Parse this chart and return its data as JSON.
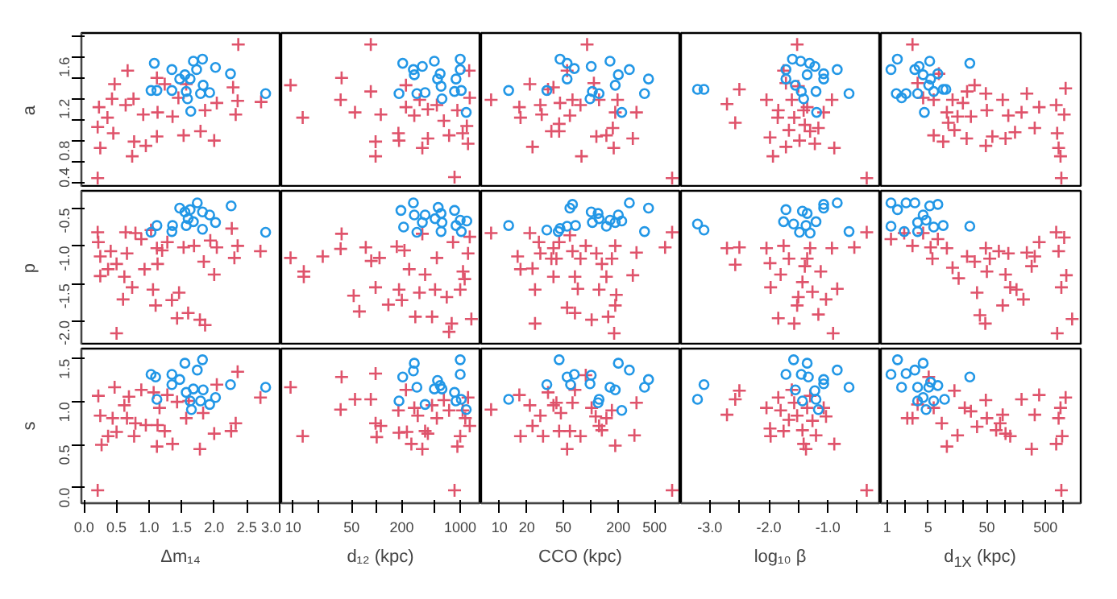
{
  "chart_data": [
    {
      "type": "scatter",
      "ylabel": "a",
      "tick_labels": "y",
      "xlim": [
        -0.04,
        3.03
      ],
      "ylim": [
        0.35,
        1.83
      ],
      "yticks": [
        0.4,
        {
          "value": 0.6,
          "label": null
        },
        0.8,
        {
          "value": 1.0,
          "label": null
        },
        1.2,
        {
          "value": 1.4,
          "label": null
        },
        1.6,
        {
          "value": 1.8,
          "label": null
        }
      ],
      "series": [
        {
          "color": "#df536b",
          "marker": "cross",
          "x": [
            0.21,
            0.25,
            0.21,
            0.23,
            0.36,
            0.43,
            0.47,
            0.45,
            0.67,
            0.64,
            0.74,
            0.77,
            0.76,
            0.91,
            0.95,
            1.12,
            1.12,
            1.13,
            1.24,
            1.36,
            1.45,
            1.53,
            1.57,
            1.79,
            1.86,
            2.0,
            2.04,
            2.29,
            2.33,
            2.37,
            2.36,
            2.72
          ],
          "values": [
            0.44,
            0.73,
            0.93,
            1.12,
            1.02,
            1.2,
            1.34,
            0.87,
            1.47,
            1.14,
            0.65,
            0.79,
            1.2,
            1.05,
            0.75,
            1.4,
            0.84,
            1.07,
            1.34,
            1.03,
            1.21,
            0.85,
            1.34,
            0.89,
            1.09,
            0.8,
            1.16,
            1.31,
            1.05,
            1.72,
            1.18,
            1.17
          ]
        },
        {
          "color": "#2297e6",
          "marker": "circle",
          "x": [
            1.08,
            1.03,
            1.12,
            1.35,
            1.35,
            1.47,
            1.55,
            1.63,
            1.57,
            1.59,
            1.68,
            1.73,
            1.82,
            1.83,
            1.79,
            1.93,
            1.64,
            2.02,
            2.25,
            2.79
          ],
          "values": [
            1.54,
            1.28,
            1.28,
            1.48,
            1.28,
            1.39,
            1.43,
            1.39,
            1.27,
            1.2,
            1.56,
            1.48,
            1.58,
            1.33,
            1.25,
            1.26,
            1.08,
            1.5,
            1.44,
            1.25
          ]
        }
      ]
    },
    {
      "type": "scatter",
      "tick_labels": false,
      "log": "x",
      "xlim": [
        7.2,
        1780
      ],
      "ylim": [
        0.35,
        1.83
      ],
      "series": [
        {
          "color": "#df536b",
          "marker": "cross",
          "x": [
            9.3,
            13,
            38,
            37,
            55,
            85,
            85,
            97,
            97,
            112,
            182,
            185,
            224,
            224,
            282,
            327,
            352,
            410,
            410,
            525,
            637,
            736,
            855,
            925,
            1070,
            1240,
            1280,
            1300,
            1200
          ],
          "values": [
            1.33,
            1.02,
            1.4,
            1.19,
            1.07,
            1.72,
            1.27,
            0.79,
            0.65,
            1.05,
            0.87,
            0.8,
            1.12,
            1.33,
            1.04,
            1.19,
            0.73,
            0.82,
            1.1,
            1.14,
            0.99,
            0.85,
            0.45,
            1.09,
            0.87,
            0.77,
            1.47,
            1.21,
            0.94
          ]
        },
        {
          "color": "#2297e6",
          "marker": "circle",
          "x": [
            185,
            205,
            275,
            282,
            303,
            352,
            380,
            490,
            535,
            575,
            590,
            605,
            890,
            855,
            1000,
            1000,
            1030,
            1180
          ],
          "values": [
            1.25,
            1.54,
            1.48,
            1.43,
            1.25,
            1.51,
            1.26,
            1.56,
            1.39,
            1.44,
            1.32,
            1.2,
            1.39,
            1.27,
            1.58,
            1.48,
            1.28,
            1.07
          ]
        }
      ]
    },
    {
      "type": "scatter",
      "tick_labels": false,
      "log": "x",
      "xlim": [
        6.3,
        970
      ],
      "ylim": [
        0.35,
        1.83
      ],
      "series": [
        {
          "color": "#df536b",
          "marker": "cross",
          "x": [
            8.1,
            16.5,
            17,
            21.5,
            23,
            28,
            29,
            34,
            37,
            45,
            46,
            39,
            55,
            63,
            77,
            91,
            108,
            123,
            59,
            45,
            79,
            115,
            148,
            174,
            178,
            196,
            185,
            288,
            316,
            776
          ],
          "values": [
            1.19,
            1.12,
            1.02,
            1.34,
            0.74,
            1.14,
            1.05,
            1.29,
            0.89,
            0.96,
            1.16,
            1.31,
            1.47,
            1.19,
            1.14,
            1.72,
            1.35,
            1.19,
            1.04,
            0.89,
            0.65,
            0.84,
            0.85,
            0.92,
            0.73,
            1.19,
            1.07,
            0.82,
            1.07,
            0.44
          ]
        },
        {
          "color": "#2297e6",
          "marker": "circle",
          "x": [
            12.6,
            33,
            46,
            55,
            66,
            55,
            101,
            104,
            123,
            162,
            185,
            200,
            264,
            218,
            387,
            428,
            98
          ],
          "values": [
            1.28,
            1.28,
            1.58,
            1.54,
            1.49,
            1.39,
            1.51,
            1.27,
            1.25,
            1.56,
            1.33,
            1.43,
            1.48,
            1.07,
            1.25,
            1.39,
            1.2
          ]
        }
      ]
    },
    {
      "type": "scatter",
      "tick_labels": false,
      "xlim": [
        -3.49,
        -0.1
      ],
      "ylim": [
        0.35,
        1.83
      ],
      "series": [
        {
          "color": "#df536b",
          "marker": "cross",
          "x": [
            -2.5,
            -2.71,
            -2.57,
            -2.04,
            -1.84,
            -1.85,
            -1.75,
            -1.71,
            -1.61,
            -1.57,
            -1.52,
            -1.5,
            -1.98,
            -1.93,
            -1.71,
            -1.48,
            -1.41,
            -1.39,
            -1.35,
            -1.3,
            -1.22,
            -1.16,
            -1.07,
            -0.93,
            -0.89,
            -1.66,
            -0.34
          ],
          "values": [
            1.29,
            1.15,
            0.97,
            1.19,
            1.09,
            1.02,
            1.47,
            1.35,
            1.19,
            1.02,
            1.72,
            1.32,
            0.83,
            0.65,
            0.74,
            0.8,
            1.09,
            0.95,
            1.12,
            0.89,
            0.77,
            0.92,
            1.07,
            1.19,
            0.73,
            0.9,
            0.44
          ]
        },
        {
          "color": "#2297e6",
          "marker": "circle",
          "x": [
            -3.21,
            -3.1,
            -1.6,
            -1.46,
            -1.31,
            -1.22,
            -1.71,
            -1.07,
            -1.07,
            -1.35,
            -0.84,
            -1.71,
            -1.55,
            -1.45,
            -1.41,
            -1.2,
            -1.19,
            -0.64
          ],
          "values": [
            1.29,
            1.29,
            1.58,
            1.56,
            1.54,
            1.51,
            1.48,
            1.44,
            1.39,
            1.43,
            1.48,
            1.39,
            1.33,
            1.27,
            1.2,
            1.27,
            1.07,
            1.25
          ]
        }
      ]
    },
    {
      "type": "scatter",
      "tick_labels": false,
      "log": "x",
      "xlim": [
        0.78,
        1990
      ],
      "ylim": [
        0.35,
        1.83
      ],
      "series": [
        {
          "color": "#df536b",
          "marker": "cross",
          "x": [
            2.7,
            3.3,
            4.1,
            6.2,
            7.6,
            6.2,
            9,
            10.4,
            11,
            13,
            14,
            15.8,
            19.5,
            22.6,
            23,
            26.7,
            30.9,
            48,
            48,
            50,
            62,
            93,
            104,
            116,
            151,
            195,
            240,
            327,
            389,
            760,
            790,
            835,
            900,
            930,
            1040,
            1100
          ],
          "values": [
            1.72,
            1.35,
            1.21,
            1.19,
            1.44,
            0.85,
            0.79,
            1.07,
            0.97,
            1.19,
            0.9,
            1.03,
            1.16,
            0.82,
            1.27,
            1.03,
            1.33,
            1.25,
            0.75,
            1.09,
            0.84,
            1.19,
            0.82,
            1.04,
            0.88,
            1.07,
            1.25,
            0.92,
            1.12,
            1.14,
            0.87,
            0.73,
            0.65,
            0.44,
            1.05,
            1.3
          ]
        },
        {
          "color": "#2297e6",
          "marker": "circle",
          "x": [
            1.49,
            1.16,
            2.96,
            3.5,
            5.3,
            4.1,
            5.5,
            7.3,
            5.1,
            1.43,
            2.1,
            3.3,
            6.2,
            9,
            10,
            4.3,
            25.6,
            1.76
          ],
          "values": [
            1.58,
            1.48,
            1.48,
            1.51,
            1.56,
            1.43,
            1.39,
            1.44,
            1.33,
            1.25,
            1.25,
            1.25,
            1.27,
            1.29,
            1.29,
            1.07,
            1.54,
            1.21
          ]
        }
      ]
    },
    {
      "type": "scatter",
      "ylabel": "p",
      "tick_labels": "y",
      "xlim": [
        -0.04,
        3.03
      ],
      "ylim": [
        -2.32,
        -0.27
      ],
      "yticks": [
        {
          "value": -2,
          "label": "-2.0"
        },
        -1.5,
        {
          "value": -1,
          "label": "-1.0"
        },
        -0.5
      ],
      "series": [
        {
          "color": "#df536b",
          "marker": "cross",
          "x": [
            0.21,
            0.22,
            0.25,
            0.25,
            0.41,
            0.37,
            0.5,
            0.5,
            0.62,
            0.64,
            0.66,
            0.6,
            0.74,
            0.79,
            0.88,
            0.93,
            1.03,
            1.06,
            1.1,
            1.12,
            1.13,
            1.2,
            1.28,
            1.35,
            1.43,
            1.46,
            1.53,
            1.6,
            1.69,
            1.78,
            1.86,
            1.84,
            1.94,
            2.0,
            2.04,
            2.27,
            2.31,
            2.36,
            2.71
          ],
          "values": [
            -0.82,
            -0.95,
            -1.14,
            -1.4,
            -1.07,
            -1.31,
            -1.24,
            -2.16,
            -1.41,
            -0.82,
            -1.1,
            -1.71,
            -1.55,
            -0.83,
            -0.91,
            -1.31,
            -0.79,
            -1.58,
            -1.79,
            -1.03,
            -1.24,
            -1.06,
            -0.95,
            -1.72,
            -1.96,
            -1.62,
            -1.02,
            -1.89,
            -1.0,
            -1.98,
            -2.05,
            -1.21,
            -0.93,
            -1.38,
            -1.02,
            -0.77,
            -1.16,
            -1.0,
            -1.07
          ]
        },
        {
          "color": "#2297e6",
          "marker": "circle",
          "x": [
            1.03,
            1.12,
            1.35,
            1.36,
            1.47,
            1.55,
            1.6,
            1.63,
            1.68,
            1.74,
            1.82,
            1.82,
            1.93,
            2.02,
            2.26,
            1.57,
            2.79
          ],
          "values": [
            -0.82,
            -0.73,
            -0.81,
            -0.73,
            -0.5,
            -0.55,
            -0.64,
            -0.52,
            -0.68,
            -0.43,
            -0.55,
            -0.78,
            -0.59,
            -0.69,
            -0.47,
            -0.73,
            -0.82
          ]
        }
      ]
    },
    {
      "type": "scatter",
      "tick_labels": false,
      "log": "x",
      "xlim": [
        7.2,
        1780
      ],
      "ylim": [
        -2.32,
        -0.27
      ],
      "series": [
        {
          "color": "#df536b",
          "marker": "cross",
          "x": [
            9.3,
            13.4,
            13.4,
            22.6,
            38,
            37,
            53,
            62,
            74,
            86,
            97,
            108,
            138,
            174,
            185,
            200,
            215,
            245,
            290,
            325,
            352,
            380,
            460,
            500,
            525,
            690,
            735,
            790,
            820,
            1000,
            1080,
            1240,
            1300,
            1360,
            1130
          ],
          "values": [
            -1.16,
            -1.34,
            -1.41,
            -1.14,
            -0.84,
            -1.04,
            -1.66,
            -1.87,
            -1.02,
            -1.2,
            -1.55,
            -1.16,
            -1.78,
            -1.01,
            -1.58,
            -1.72,
            -1.06,
            -1.31,
            -1.94,
            -1.62,
            -0.84,
            -1.38,
            -1.94,
            -1.58,
            -1.16,
            -1.68,
            -2.14,
            -2.03,
            -0.95,
            -1.58,
            -1.34,
            -1.1,
            -0.88,
            -1.97,
            -1.44
          ]
        },
        {
          "color": "#2297e6",
          "marker": "circle",
          "x": [
            195,
            210,
            275,
            282,
            303,
            352,
            380,
            500,
            545,
            590,
            605,
            590,
            855,
            890,
            1000,
            1030,
            1200
          ],
          "values": [
            -0.53,
            -0.75,
            -0.43,
            -0.59,
            -0.82,
            -0.69,
            -0.59,
            -0.64,
            -0.49,
            -0.57,
            -0.69,
            -0.81,
            -0.53,
            -0.73,
            -0.66,
            -0.81,
            -0.67
          ]
        }
      ]
    },
    {
      "type": "scatter",
      "tick_labels": false,
      "log": "x",
      "xlim": [
        6.3,
        970
      ],
      "ylim": [
        -2.32,
        -0.27
      ],
      "series": [
        {
          "color": "#df536b",
          "marker": "cross",
          "x": [
            8.1,
            15.8,
            17,
            21.5,
            23,
            24.5,
            24.5,
            27,
            28,
            39,
            37,
            45,
            39,
            42,
            63,
            59,
            67,
            72,
            77,
            88,
            115,
            132,
            148,
            123,
            170,
            185,
            190,
            185,
            288,
            316,
            67,
            55,
            102,
            155,
            650,
            776,
            180
          ],
          "values": [
            -0.83,
            -1.14,
            -1.31,
            -0.83,
            -1.3,
            -1.58,
            -2.03,
            -0.95,
            -1.1,
            -1.41,
            -1.17,
            -0.95,
            -1.03,
            -1.17,
            -1.07,
            -0.86,
            -1.41,
            -1.57,
            -1.17,
            -1.0,
            -1.1,
            -1.24,
            -1.41,
            -1.58,
            -1.17,
            -1.0,
            -1.65,
            -1.79,
            -1.39,
            -1.09,
            -1.89,
            -1.82,
            -1.98,
            -1.94,
            -1.02,
            -0.82,
            -2.16
          ]
        },
        {
          "color": "#2297e6",
          "marker": "circle",
          "x": [
            12.6,
            33,
            46,
            55,
            59,
            63,
            68,
            101,
            104,
            120,
            123,
            148,
            162,
            185,
            200,
            218,
            264,
            387,
            428,
            44
          ],
          "values": [
            -0.73,
            -0.79,
            -0.77,
            -0.74,
            -0.5,
            -0.45,
            -0.73,
            -0.55,
            -0.69,
            -0.57,
            -0.64,
            -0.74,
            -0.66,
            -0.69,
            -0.59,
            -0.67,
            -0.43,
            -0.81,
            -0.5,
            -0.81
          ]
        }
      ]
    },
    {
      "type": "scatter",
      "tick_labels": false,
      "xlim": [
        -3.49,
        -0.1
      ],
      "ylim": [
        -2.32,
        -0.27
      ],
      "series": [
        {
          "color": "#df536b",
          "marker": "cross",
          "x": [
            -2.71,
            -2.5,
            -2.57,
            -2.04,
            -1.98,
            -1.97,
            -1.84,
            -1.8,
            -1.75,
            -1.66,
            -1.57,
            -1.52,
            -1.5,
            -1.43,
            -1.39,
            -1.35,
            -1.3,
            -1.26,
            -1.16,
            -1.12,
            -1.03,
            -0.93,
            -0.84,
            -0.55,
            -0.34,
            -0.91
          ],
          "values": [
            -1.03,
            -1.02,
            -1.25,
            -1.03,
            -1.23,
            -1.55,
            -1.96,
            -1.38,
            -1.0,
            -1.17,
            -2.03,
            -1.79,
            -1.68,
            -1.48,
            -1.27,
            -1.17,
            -1.03,
            -1.61,
            -1.91,
            -1.34,
            -1.71,
            -1.03,
            -1.57,
            -1.02,
            -0.82,
            -2.16
          ]
        },
        {
          "color": "#2297e6",
          "marker": "circle",
          "x": [
            -3.21,
            -3.1,
            -1.71,
            -1.75,
            -1.58,
            -1.43,
            -1.35,
            -1.48,
            -1.37,
            -1.2,
            -1.07,
            -1.07,
            -0.84,
            -0.64,
            -1.3
          ],
          "values": [
            -0.71,
            -0.79,
            -0.52,
            -0.68,
            -0.71,
            -0.54,
            -0.57,
            -0.82,
            -0.73,
            -0.68,
            -0.45,
            -0.5,
            -0.43,
            -0.81,
            -0.83
          ]
        }
      ]
    },
    {
      "type": "scatter",
      "tick_labels": false,
      "log": "x",
      "xlim": [
        0.78,
        1990
      ],
      "ylim": [
        -2.32,
        -0.27
      ],
      "series": [
        {
          "color": "#df536b",
          "marker": "cross",
          "x": [
            1.95,
            1.16,
            2.7,
            4.1,
            5.5,
            5.9,
            7.3,
            10.4,
            13,
            16.5,
            23,
            31,
            34,
            38,
            47,
            48,
            50,
            56,
            80,
            93,
            104,
            116,
            125,
            160,
            210,
            240,
            327,
            290,
            390,
            760,
            835,
            1040,
            1130,
            930,
            790,
            1420
          ],
          "values": [
            -0.83,
            -0.91,
            -1.0,
            -0.83,
            -1.02,
            -1.17,
            -0.91,
            -1.03,
            -1.29,
            -1.43,
            -1.14,
            -1.21,
            -1.62,
            -1.92,
            -2.03,
            -1.03,
            -1.34,
            -1.17,
            -1.07,
            -1.79,
            -1.38,
            -1.1,
            -1.55,
            -1.58,
            -1.71,
            -1.09,
            -1.14,
            -1.27,
            -0.95,
            -0.82,
            -1.07,
            -0.89,
            -1.39,
            -1.55,
            -2.16,
            -1.97
          ]
        },
        {
          "color": "#2297e6",
          "marker": "circle",
          "x": [
            1.16,
            1.5,
            2.1,
            2.96,
            5.3,
            7.3,
            4.1,
            4.6,
            1.16,
            1.95,
            3.3,
            6.2,
            9,
            25.6,
            3.3
          ],
          "values": [
            -0.43,
            -0.52,
            -0.43,
            -0.43,
            -0.47,
            -0.45,
            -0.59,
            -0.66,
            -0.74,
            -0.81,
            -0.81,
            -0.75,
            -0.73,
            -0.74,
            -0.69
          ]
        }
      ]
    },
    {
      "type": "scatter",
      "ylabel": "s",
      "xlabel": "Δm₁₄",
      "xlim": [
        -0.04,
        3.03
      ],
      "ylim": [
        -0.18,
        1.62
      ],
      "xticks": [
        {
          "value": 0,
          "label": "0.0"
        },
        0.5,
        {
          "value": 1,
          "label": "1.0"
        },
        1.5,
        {
          "value": 2,
          "label": "2.0"
        },
        2.5,
        {
          "value": 3,
          "label": "3.0"
        }
      ],
      "yticks": [
        {
          "value": 0,
          "label": "0.0"
        },
        0.5,
        {
          "value": 1,
          "label": "1.0"
        },
        1.5
      ],
      "series": [
        {
          "color": "#df536b",
          "marker": "cross",
          "x": [
            0.21,
            0.25,
            0.22,
            0.27,
            0.37,
            0.44,
            0.47,
            0.5,
            0.62,
            0.66,
            0.69,
            0.77,
            0.79,
            0.88,
            0.95,
            1.07,
            1.12,
            1.13,
            1.16,
            1.24,
            1.28,
            1.36,
            1.43,
            1.57,
            1.61,
            1.78,
            1.83,
            2.0,
            2.04,
            2.26,
            2.36,
            2.33,
            2.71
          ],
          "values": [
            -0.03,
            0.84,
            1.07,
            0.5,
            0.6,
            0.81,
            1.17,
            0.65,
            0.96,
            0.81,
            1.06,
            0.6,
            0.75,
            1.14,
            0.73,
            1.11,
            0.48,
            0.73,
            0.93,
            0.66,
            1.08,
            0.51,
            1.0,
            0.81,
            1.01,
            0.45,
            0.87,
            0.63,
            1.2,
            0.66,
            1.35,
            0.75,
            1.05
          ]
        },
        {
          "color": "#2297e6",
          "marker": "circle",
          "x": [
            1.03,
            1.1,
            1.12,
            1.35,
            1.35,
            1.47,
            1.55,
            1.57,
            1.63,
            1.65,
            1.68,
            1.74,
            1.82,
            1.83,
            1.79,
            1.93,
            2.02,
            2.25,
            2.79
          ],
          "values": [
            1.32,
            1.29,
            1.03,
            1.32,
            1.2,
            1.26,
            1.45,
            1.11,
            1.01,
            0.91,
            1.15,
            1.37,
            1.49,
            1.14,
            1.01,
            0.97,
            1.05,
            1.2,
            1.17
          ]
        }
      ]
    },
    {
      "type": "scatter",
      "xlabel": "d₁₂ (kpc)",
      "tick_labels": "x",
      "log": "x",
      "xlim": [
        7.2,
        1780
      ],
      "ylim": [
        -0.18,
        1.62
      ],
      "xticks": [
        10,
        {
          "value": 20,
          "label": null
        },
        50,
        {
          "value": 100,
          "label": null
        },
        200,
        {
          "value": 500,
          "label": null
        },
        1000
      ],
      "series": [
        {
          "color": "#df536b",
          "marker": "cross",
          "x": [
            9.3,
            13,
            38,
            37,
            55,
            85,
            97,
            97,
            100,
            112,
            182,
            185,
            224,
            230,
            260,
            282,
            310,
            352,
            380,
            410,
            460,
            525,
            637,
            736,
            855,
            925,
            1000,
            1070,
            1150,
            1240,
            1300
          ],
          "values": [
            1.17,
            0.6,
            1.29,
            0.91,
            1.03,
            1.03,
            1.33,
            0.75,
            0.59,
            0.72,
            0.9,
            0.64,
            1.14,
            0.65,
            0.51,
            0.93,
            0.84,
            0.45,
            0.66,
            0.63,
            0.96,
            0.81,
            1.02,
            0.9,
            -0.03,
            0.48,
            0.6,
            0.9,
            0.81,
            1.05,
            0.72
          ]
        },
        {
          "color": "#2297e6",
          "marker": "circle",
          "x": [
            185,
            205,
            275,
            282,
            303,
            380,
            490,
            535,
            575,
            605,
            855,
            890,
            1000,
            1000,
            1030,
            1180
          ],
          "values": [
            1.01,
            1.29,
            1.36,
            1.45,
            1.17,
            0.97,
            1.15,
            1.25,
            1.19,
            1.15,
            1.11,
            1.01,
            1.49,
            1.32,
            1.03,
            0.91
          ]
        }
      ]
    },
    {
      "type": "scatter",
      "xlabel": "CCO (kpc)",
      "tick_labels": "x",
      "log": "x",
      "xlim": [
        6.3,
        970
      ],
      "ylim": [
        -0.18,
        1.62
      ],
      "xticks": [
        10,
        20,
        50,
        {
          "value": 100,
          "label": null
        },
        200,
        500
      ],
      "series": [
        {
          "color": "#df536b",
          "marker": "cross",
          "x": [
            8.1,
            16.5,
            17,
            21.5,
            23,
            28,
            30,
            34,
            39,
            45,
            42,
            55,
            59,
            67,
            77,
            88,
            102,
            113,
            123,
            132,
            148,
            170,
            185,
            300,
            316,
            776,
            63,
            47
          ],
          "values": [
            0.91,
            1.08,
            0.6,
            0.96,
            0.72,
            0.84,
            0.6,
            1.11,
            0.96,
            0.66,
            0.99,
            0.45,
            0.66,
            1.14,
            0.6,
            1.31,
            0.93,
            0.83,
            0.72,
            0.67,
            0.81,
            0.9,
            0.49,
            0.61,
            0.99,
            -0.03,
            0.99,
            0.87
          ]
        },
        {
          "color": "#2297e6",
          "marker": "circle",
          "x": [
            12.6,
            33,
            45,
            55,
            60,
            66,
            101,
            98,
            120,
            123,
            162,
            185,
            200,
            218,
            264,
            387,
            428
          ],
          "values": [
            1.03,
            1.2,
            1.49,
            1.29,
            1.2,
            1.32,
            1.31,
            1.21,
            0.99,
            1.03,
            1.17,
            1.14,
            1.45,
            0.9,
            1.37,
            1.17,
            1.26
          ]
        }
      ]
    },
    {
      "type": "scatter",
      "xlabel": "log₁₀ β",
      "tick_labels": "x",
      "xlim": [
        -3.49,
        -0.1
      ],
      "ylim": [
        -0.18,
        1.62
      ],
      "xticks": [
        {
          "value": -3,
          "label": "-3.0"
        },
        {
          "value": -2.5,
          "label": null
        },
        {
          "value": -2,
          "label": "-2.0"
        },
        {
          "value": -1.5,
          "label": null
        },
        {
          "value": -1,
          "label": "-1.0"
        },
        {
          "value": -0.5,
          "label": null
        }
      ],
      "series": [
        {
          "color": "#df536b",
          "marker": "cross",
          "x": [
            -2.71,
            -2.57,
            -2.5,
            -2.04,
            -1.98,
            -1.97,
            -1.84,
            -1.8,
            -1.75,
            -1.66,
            -1.57,
            -1.52,
            -1.43,
            -1.41,
            -1.37,
            -1.35,
            -1.3,
            -1.26,
            -1.2,
            -1.07,
            -1.03,
            -0.89,
            -0.34,
            -1.61
          ],
          "values": [
            0.85,
            1.03,
            1.13,
            0.93,
            0.69,
            0.6,
            1.05,
            0.9,
            0.66,
            0.79,
            0.99,
            0.84,
            0.67,
            0.51,
            0.45,
            0.93,
            1.07,
            0.78,
            0.61,
            0.93,
            0.83,
            0.51,
            -0.03,
            1.14
          ]
        },
        {
          "color": "#2297e6",
          "marker": "circle",
          "x": [
            -3.21,
            -3.1,
            -1.71,
            -1.58,
            -1.55,
            -1.45,
            -1.43,
            -1.35,
            -1.33,
            -1.22,
            -1.2,
            -1.16,
            -1.07,
            -1.07,
            -0.84,
            -0.64
          ],
          "values": [
            1.03,
            1.2,
            1.32,
            1.49,
            1.14,
            1.32,
            1.01,
            1.45,
            1.29,
            1.13,
            1.03,
            0.91,
            1.26,
            1.21,
            1.37,
            1.17
          ]
        }
      ]
    },
    {
      "type": "scatter",
      "xlabel": "d$_{1X}$ (kpc)",
      "tick_labels": "x",
      "log": "x",
      "xlim": [
        0.78,
        1990
      ],
      "ylim": [
        -0.18,
        1.62
      ],
      "xticks": [
        1,
        {
          "value": 2,
          "label": null
        },
        5,
        {
          "value": 10,
          "label": null
        },
        {
          "value": 20,
          "label": null
        },
        50,
        {
          "value": 100,
          "label": null
        },
        {
          "value": 200,
          "label": null
        },
        500,
        {
          "value": 1000,
          "label": null
        }
      ],
      "series": [
        {
          "color": "#df536b",
          "marker": "cross",
          "x": [
            2.2,
            3.3,
            5.1,
            6.2,
            8.5,
            10.4,
            14,
            15.8,
            21,
            26.7,
            34,
            48,
            50,
            72,
            93,
            104,
            125,
            195,
            290,
            327,
            389,
            760,
            835,
            900,
            930,
            960,
            1100,
            84,
            2.7
          ],
          "values": [
            0.81,
            0.97,
            1.29,
            0.93,
            0.75,
            0.48,
            1.13,
            0.61,
            0.93,
            0.89,
            0.71,
            1.02,
            0.81,
            0.67,
            0.85,
            0.63,
            0.6,
            1.03,
            0.45,
            0.85,
            1.08,
            0.51,
            0.81,
            0.93,
            -0.03,
            0.6,
            1.05,
            0.75,
            0.81
          ]
        },
        {
          "color": "#2297e6",
          "marker": "circle",
          "x": [
            1.16,
            1.5,
            2.1,
            2.96,
            4.1,
            1.76,
            3.3,
            4.1,
            5.5,
            5.1,
            6.2,
            7.3,
            9.5,
            25.6,
            4.6,
            3.3
          ],
          "values": [
            1.32,
            1.49,
            1.33,
            1.37,
            1.45,
            1.17,
            1.01,
            1.05,
            1.23,
            1.17,
            1.01,
            1.19,
            1.03,
            1.29,
            0.91,
            1.17
          ]
        }
      ]
    }
  ]
}
